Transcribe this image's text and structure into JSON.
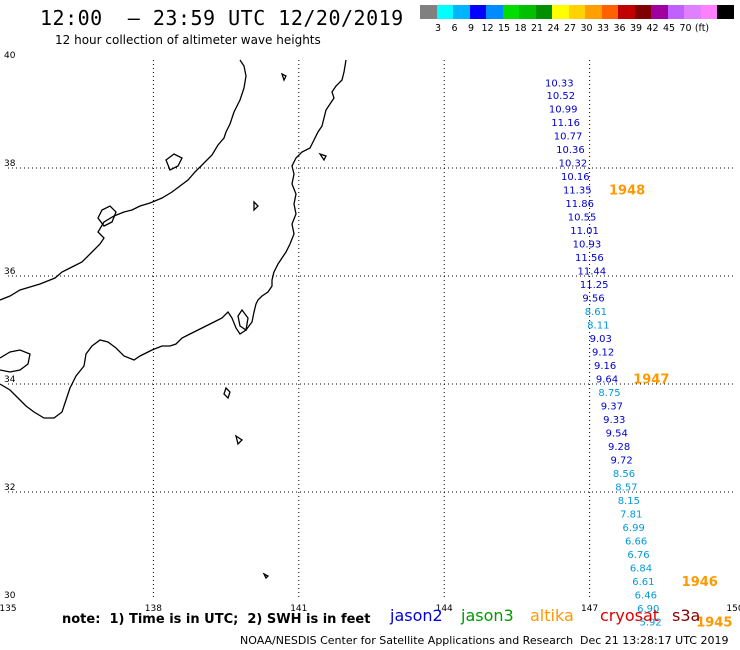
{
  "title": "12:00  – 23:59 UTC 12/20/2019",
  "subtitle": "12 hour collection of altimeter wave heights",
  "scale": {
    "colors": [
      "#808080",
      "#00ffff",
      "#00b4ff",
      "#0000ff",
      "#008bff",
      "#00dd00",
      "#00c000",
      "#009000",
      "#ffff00",
      "#ffd200",
      "#ffa000",
      "#ff6000",
      "#c00000",
      "#800000",
      "#a000a0",
      "#c060ff",
      "#e080ff",
      "#ff80ff",
      "#000000"
    ],
    "labels": [
      "3",
      "6",
      "9",
      "12",
      "15",
      "18",
      "21",
      "24",
      "27",
      "30",
      "33",
      "36",
      "39",
      "42",
      "45",
      "70",
      "(ft)"
    ]
  },
  "chart_data": {
    "type": "map",
    "x_ticks": [
      "135",
      "138",
      "141",
      "144",
      "147",
      "150"
    ],
    "y_ticks": [
      "30",
      "32",
      "34",
      "36",
      "38",
      "40"
    ],
    "xlim": [
      135,
      150
    ],
    "ylim": [
      30,
      40
    ],
    "grid": true,
    "observations": [
      {
        "lon": 146.08,
        "lat": 39.58,
        "v": "10.33",
        "c": "#0000cc"
      },
      {
        "lon": 146.11,
        "lat": 39.35,
        "v": "10.52",
        "c": "#0000cc"
      },
      {
        "lon": 146.16,
        "lat": 39.1,
        "v": "10.99",
        "c": "#0000cc"
      },
      {
        "lon": 146.21,
        "lat": 38.85,
        "v": "11.16",
        "c": "#0000cc"
      },
      {
        "lon": 146.26,
        "lat": 38.6,
        "v": "10.77",
        "c": "#0000cc"
      },
      {
        "lon": 146.31,
        "lat": 38.35,
        "v": "10.36",
        "c": "#0000cc"
      },
      {
        "lon": 146.36,
        "lat": 38.1,
        "v": "10.32",
        "c": "#0000cc"
      },
      {
        "lon": 146.41,
        "lat": 37.85,
        "v": "10.16",
        "c": "#0000cc"
      },
      {
        "lon": 146.45,
        "lat": 37.6,
        "v": "11.35",
        "c": "#0000cc"
      },
      {
        "lon": 146.5,
        "lat": 37.35,
        "v": "11.86",
        "c": "#0000cc"
      },
      {
        "lon": 146.55,
        "lat": 37.1,
        "v": "10.55",
        "c": "#0000cc"
      },
      {
        "lon": 146.6,
        "lat": 36.85,
        "v": "11.01",
        "c": "#0000cc"
      },
      {
        "lon": 146.65,
        "lat": 36.6,
        "v": "10.93",
        "c": "#0000cc"
      },
      {
        "lon": 146.7,
        "lat": 36.35,
        "v": "11.56",
        "c": "#0000cc"
      },
      {
        "lon": 146.75,
        "lat": 36.1,
        "v": "11.44",
        "c": "#0000cc"
      },
      {
        "lon": 146.8,
        "lat": 35.85,
        "v": "11.25",
        "c": "#0000cc"
      },
      {
        "lon": 146.85,
        "lat": 35.6,
        "v": "9.56",
        "c": "#0000cc"
      },
      {
        "lon": 146.9,
        "lat": 35.35,
        "v": "8.61",
        "c": "#0099dd"
      },
      {
        "lon": 146.95,
        "lat": 35.1,
        "v": "8.11",
        "c": "#0099dd"
      },
      {
        "lon": 147.0,
        "lat": 34.85,
        "v": "9.03",
        "c": "#0000cc"
      },
      {
        "lon": 147.05,
        "lat": 34.6,
        "v": "9.12",
        "c": "#0000cc"
      },
      {
        "lon": 147.09,
        "lat": 34.35,
        "v": "9.16",
        "c": "#0000cc"
      },
      {
        "lon": 147.13,
        "lat": 34.1,
        "v": "9.64",
        "c": "#0000cc"
      },
      {
        "lon": 147.18,
        "lat": 33.85,
        "v": "8.75",
        "c": "#0099dd"
      },
      {
        "lon": 147.23,
        "lat": 33.6,
        "v": "9.37",
        "c": "#0000cc"
      },
      {
        "lon": 147.28,
        "lat": 33.35,
        "v": "9.33",
        "c": "#0000cc"
      },
      {
        "lon": 147.33,
        "lat": 33.1,
        "v": "9.54",
        "c": "#0000cc"
      },
      {
        "lon": 147.38,
        "lat": 32.85,
        "v": "9.28",
        "c": "#0000cc"
      },
      {
        "lon": 147.43,
        "lat": 32.6,
        "v": "9.72",
        "c": "#0000cc"
      },
      {
        "lon": 147.48,
        "lat": 32.35,
        "v": "8.56",
        "c": "#0099dd"
      },
      {
        "lon": 147.53,
        "lat": 32.1,
        "v": "8.57",
        "c": "#0099dd"
      },
      {
        "lon": 147.58,
        "lat": 31.85,
        "v": "8.15",
        "c": "#0099dd"
      },
      {
        "lon": 147.63,
        "lat": 31.6,
        "v": "7.81",
        "c": "#0099dd"
      },
      {
        "lon": 147.68,
        "lat": 31.35,
        "v": "6.99",
        "c": "#0099dd"
      },
      {
        "lon": 147.73,
        "lat": 31.1,
        "v": "6.66",
        "c": "#0099dd"
      },
      {
        "lon": 147.78,
        "lat": 30.85,
        "v": "6.76",
        "c": "#0099dd"
      },
      {
        "lon": 147.83,
        "lat": 30.6,
        "v": "6.84",
        "c": "#0099dd"
      },
      {
        "lon": 147.88,
        "lat": 30.35,
        "v": "6.61",
        "c": "#0099dd"
      },
      {
        "lon": 147.93,
        "lat": 30.1,
        "v": "6.46",
        "c": "#0099dd"
      },
      {
        "lon": 147.98,
        "lat": 29.85,
        "v": "6.90",
        "c": "#0099dd"
      },
      {
        "lon": 148.03,
        "lat": 29.6,
        "v": "5.92",
        "c": "#0099dd"
      }
    ],
    "time_labels": [
      {
        "lon": 147.4,
        "lat": 37.6,
        "text": "1948"
      },
      {
        "lon": 147.9,
        "lat": 34.1,
        "text": "1947"
      },
      {
        "lon": 148.9,
        "lat": 30.35,
        "text": "1946"
      },
      {
        "lon": 149.2,
        "lat": 29.6,
        "text": "1945"
      }
    ],
    "time_label_color": "#ff9900"
  },
  "footer": {
    "note": "note:  1) Time is in UTC;  2) SWH is in feet",
    "satellites": [
      {
        "name": "jason2",
        "color": "#0000dd"
      },
      {
        "name": "jason3",
        "color": "#009900"
      },
      {
        "name": "altika",
        "color": "#ff9900"
      },
      {
        "name": "cryosat",
        "color": "#dd0000"
      },
      {
        "name": "s3a",
        "color": "#880000"
      }
    ],
    "credit": "NOAA/NESDIS Center for Satellite Applications and Research",
    "generated": "Dec 21 13:28:17 UTC 2019"
  }
}
